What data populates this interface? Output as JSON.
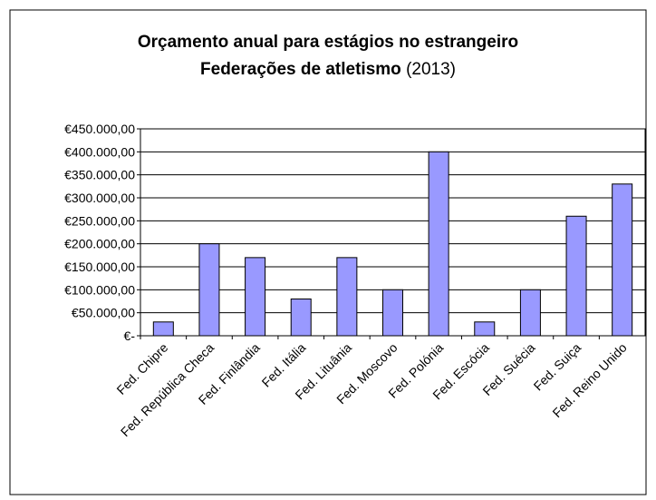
{
  "chart_data": {
    "type": "bar",
    "title": "Orçamento anual para estágios no estrangeiro",
    "subtitle": "Federações de atletismo",
    "subtitle_note": "(2013)",
    "categories": [
      "Fed. Chipre",
      "Fed. República Checa",
      "Fed. Finlândia",
      "Fed. Itália",
      "Fed. Lituânia",
      "Fed. Moscovo",
      "Fed. Polónia",
      "Fed. Escócia",
      "Fed. Suécia",
      "Fed. Suiça",
      "Fed. Reino Unido"
    ],
    "values": [
      30000,
      200000,
      170000,
      80000,
      170000,
      100000,
      400000,
      30000,
      100000,
      260000,
      330000
    ],
    "color": "#9999ff",
    "ylim": [
      0,
      450000
    ],
    "yticks": [
      {
        "value": 0,
        "label": "€-"
      },
      {
        "value": 50000,
        "label": "€50.000,00"
      },
      {
        "value": 100000,
        "label": "€100.000,00"
      },
      {
        "value": 150000,
        "label": "€150.000,00"
      },
      {
        "value": 200000,
        "label": "€200.000,00"
      },
      {
        "value": 250000,
        "label": "€250.000,00"
      },
      {
        "value": 300000,
        "label": "€300.000,00"
      },
      {
        "value": 350000,
        "label": "€350.000,00"
      },
      {
        "value": 400000,
        "label": "€400.000,00"
      },
      {
        "value": 450000,
        "label": "€450.000,00"
      }
    ],
    "grid": true
  }
}
